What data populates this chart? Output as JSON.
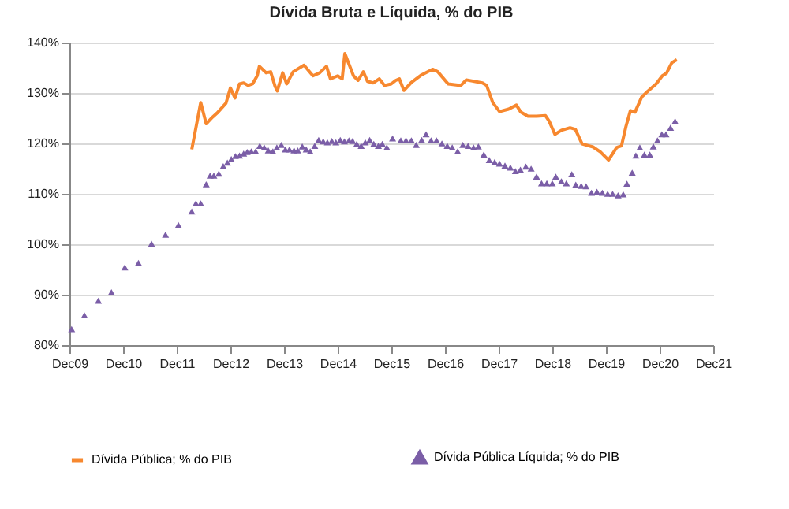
{
  "chart_data": {
    "type": "line",
    "title": "Dívida Bruta e Líquida, % do PIB",
    "xlim": [
      "2009-12",
      "2021-12"
    ],
    "xticks": [
      {
        "value": "2009-12",
        "label": "Dec09"
      },
      {
        "value": "2010-12",
        "label": "Dec10"
      },
      {
        "value": "2011-12",
        "label": "Dec11"
      },
      {
        "value": "2012-12",
        "label": "Dec12"
      },
      {
        "value": "2013-12",
        "label": "Dec13"
      },
      {
        "value": "2014-12",
        "label": "Dec14"
      },
      {
        "value": "2015-12",
        "label": "Dec15"
      },
      {
        "value": "2016-12",
        "label": "Dec16"
      },
      {
        "value": "2017-12",
        "label": "Dec17"
      },
      {
        "value": "2018-12",
        "label": "Dec18"
      },
      {
        "value": "2019-12",
        "label": "Dec19"
      },
      {
        "value": "2020-12",
        "label": "Dec20"
      },
      {
        "value": "2021-12",
        "label": "Dec21"
      }
    ],
    "ylim": [
      80,
      140
    ],
    "yticks": [
      {
        "value": 80,
        "label": "80%"
      },
      {
        "value": 90,
        "label": "90%"
      },
      {
        "value": 100,
        "label": "100%"
      },
      {
        "value": 110,
        "label": "110%"
      },
      {
        "value": 120,
        "label": "120%"
      },
      {
        "value": 130,
        "label": "130%"
      },
      {
        "value": 140,
        "label": "140%"
      }
    ],
    "grid": "y",
    "legend": "bottom",
    "series": [
      {
        "name": "Dívida Pública; % do PIB",
        "type": "line",
        "color": "#f7882f",
        "marker": "none",
        "x": [
          "2012-03-13",
          "2012-05-13",
          "2012-06-19",
          "2012-08-01",
          "2012-09-01",
          "2012-11-01",
          "2012-12-01",
          "2013-01-01",
          "2013-02-01",
          "2013-03-01",
          "2013-04-01",
          "2013-05-01",
          "2013-06-01",
          "2013-06-16",
          "2013-08-01",
          "2013-09-01",
          "2013-10-01",
          "2013-10-16",
          "2013-11-22",
          "2013-12-19",
          "2014-02-01",
          "2014-04-16",
          "2014-06-16",
          "2014-08-01",
          "2014-09-16",
          "2014-10-13",
          "2014-12-01",
          "2015-01-01",
          "2015-01-19",
          "2015-03-19",
          "2015-04-19",
          "2015-05-25",
          "2015-06-22",
          "2015-08-01",
          "2015-09-10",
          "2015-10-16",
          "2015-12-01",
          "2016-01-01",
          "2016-01-25",
          "2016-02-25",
          "2016-04-16",
          "2016-06-25",
          "2016-09-07",
          "2016-10-13",
          "2016-12-22",
          "2017-03-19",
          "2017-04-25",
          "2017-08-13",
          "2017-09-10",
          "2017-10-22",
          "2017-12-07",
          "2018-02-07",
          "2018-04-01",
          "2018-05-01",
          "2018-06-19",
          "2018-08-16",
          "2018-10-16",
          "2018-11-10",
          "2018-12-19",
          "2019-02-01",
          "2019-04-01",
          "2019-05-07",
          "2019-06-22",
          "2019-09-04",
          "2019-10-25",
          "2019-12-19",
          "2020-02-13",
          "2020-03-16",
          "2020-04-16",
          "2020-05-16",
          "2020-06-16",
          "2020-08-01",
          "2020-09-13",
          "2020-11-07",
          "2020-12-19",
          "2021-01-16",
          "2021-02-22",
          "2021-03-28"
        ],
        "values": [
          118.8,
          128.1,
          123.9,
          125.2,
          126,
          128,
          131,
          129,
          131.8,
          132,
          131.5,
          131.8,
          133.4,
          135.3,
          134,
          134.2,
          131.3,
          130.4,
          134,
          131.8,
          134.2,
          135.5,
          133.4,
          134,
          135.3,
          132.8,
          133.4,
          132.8,
          137.8,
          133.4,
          132.5,
          134.2,
          132.3,
          132,
          132.8,
          131.5,
          131.8,
          132.5,
          132.8,
          130.5,
          132.1,
          133.6,
          134.7,
          134.2,
          131.8,
          131.5,
          132.6,
          132,
          131.5,
          128.1,
          126.3,
          126.8,
          127.6,
          126.2,
          125.4,
          125.4,
          125.5,
          124.4,
          121.8,
          122.6,
          123.1,
          122.8,
          119.9,
          119.3,
          118.3,
          116.7,
          119.2,
          119.5,
          123.4,
          126.5,
          126.2,
          129.2,
          130.4,
          131.8,
          133.4,
          133.9,
          136,
          136.6
        ]
      },
      {
        "name": "Dívida Pública Líquida; % do PIB",
        "type": "scatter",
        "color": "#7b5ea7",
        "marker": "triangle",
        "x": [
          "2009-12-16",
          "2010-03-13",
          "2010-06-16",
          "2010-09-13",
          "2010-12-13",
          "2011-03-16",
          "2011-06-13",
          "2011-09-16",
          "2011-12-13",
          "2012-03-13",
          "2012-04-10",
          "2012-05-13",
          "2012-06-19",
          "2012-07-16",
          "2012-08-10",
          "2012-09-13",
          "2012-10-13",
          "2012-11-10",
          "2012-12-07",
          "2013-01-04",
          "2013-02-01",
          "2013-03-01",
          "2013-03-25",
          "2013-04-22",
          "2013-05-22",
          "2013-06-19",
          "2013-07-19",
          "2013-08-16",
          "2013-09-16",
          "2013-10-13",
          "2013-11-13",
          "2013-12-10",
          "2014-01-07",
          "2014-02-07",
          "2014-03-04",
          "2014-04-04",
          "2014-05-01",
          "2014-05-28",
          "2014-06-28",
          "2014-07-25",
          "2014-08-25",
          "2014-09-22",
          "2014-10-22",
          "2014-11-19",
          "2014-12-19",
          "2015-01-16",
          "2015-02-16",
          "2015-03-13",
          "2015-04-10",
          "2015-05-10",
          "2015-06-07",
          "2015-07-07",
          "2015-08-04",
          "2015-09-04",
          "2015-10-01",
          "2015-11-01",
          "2015-12-10",
          "2016-02-04",
          "2016-03-10",
          "2016-04-16",
          "2016-05-19",
          "2016-06-25",
          "2016-07-25",
          "2016-08-28",
          "2016-10-04",
          "2016-11-10",
          "2016-12-16",
          "2017-01-19",
          "2017-02-25",
          "2017-04-01",
          "2017-05-07",
          "2017-06-13",
          "2017-07-16",
          "2017-08-22",
          "2017-09-28",
          "2017-11-04",
          "2017-12-07",
          "2018-01-13",
          "2018-02-19",
          "2018-03-25",
          "2018-04-28",
          "2018-06-04",
          "2018-07-10",
          "2018-08-16",
          "2018-09-19",
          "2018-10-25",
          "2018-12-01",
          "2018-12-25",
          "2019-02-01",
          "2019-03-07",
          "2019-04-13",
          "2019-05-10",
          "2019-06-16",
          "2019-07-19",
          "2019-08-25",
          "2019-10-01",
          "2019-11-07",
          "2019-12-13",
          "2020-01-16",
          "2020-02-22",
          "2020-03-28",
          "2020-04-22",
          "2020-05-28",
          "2020-06-22",
          "2020-07-19",
          "2020-08-19",
          "2020-09-25",
          "2020-10-19",
          "2020-11-16",
          "2020-12-16",
          "2021-01-13",
          "2021-02-13",
          "2021-03-16"
        ],
        "values": [
          83.2,
          85.9,
          88.8,
          90.5,
          95.4,
          96.3,
          100.1,
          101.9,
          103.8,
          106.5,
          108.1,
          108.1,
          111.9,
          113.6,
          113.6,
          114,
          115.5,
          116.2,
          116.9,
          117.5,
          117.6,
          118,
          118.3,
          118.4,
          118.4,
          119.5,
          119.2,
          118.6,
          118.4,
          119.2,
          119.7,
          118.8,
          118.8,
          118.6,
          118.6,
          119.4,
          118.8,
          118.4,
          119.5,
          120.7,
          120.4,
          120.2,
          120.5,
          120.2,
          120.7,
          120.4,
          120.6,
          120.5,
          119.9,
          119.5,
          120.2,
          120.7,
          119.9,
          119.5,
          119.9,
          119.2,
          121,
          120.6,
          120.6,
          120.6,
          119.7,
          120.7,
          121.8,
          120.6,
          120.6,
          120,
          119.5,
          119.2,
          118.4,
          119.7,
          119.5,
          119.2,
          119.4,
          117.8,
          116.7,
          116.3,
          116,
          115.6,
          115.2,
          114.5,
          114.8,
          115.4,
          115,
          113.4,
          112.1,
          112.1,
          112.1,
          113.4,
          112.5,
          112.1,
          113.9,
          111.8,
          111.6,
          111.5,
          110.2,
          110.4,
          110.2,
          110,
          110,
          109.7,
          109.9,
          112,
          114.2,
          117.6,
          119.2,
          117.8,
          117.8,
          119.4,
          120.6,
          121.8,
          121.8,
          123.1,
          124.4
        ]
      }
    ]
  }
}
